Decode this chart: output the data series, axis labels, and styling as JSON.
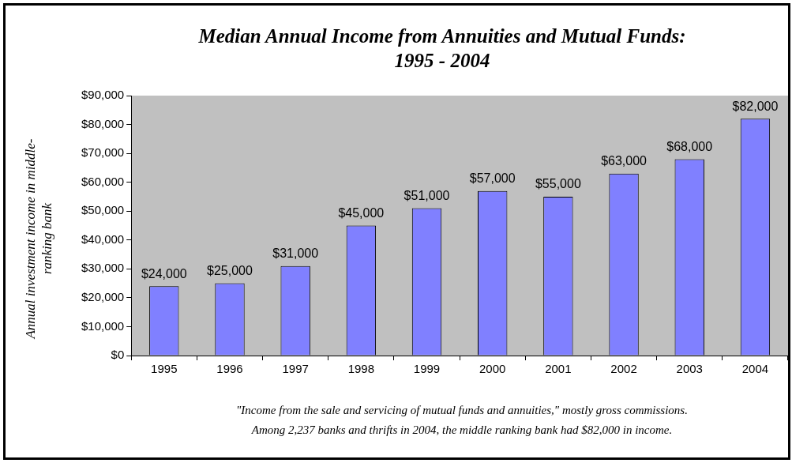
{
  "chart_data": {
    "type": "bar",
    "title": "Median Annual Income from Annuities and Mutual Funds: 1995 - 2004",
    "ylabel": "Annual investment income in middle-ranking bank",
    "categories": [
      "1995",
      "1996",
      "1997",
      "1998",
      "1999",
      "2000",
      "2001",
      "2002",
      "2003",
      "2004"
    ],
    "values": [
      24000,
      25000,
      31000,
      45000,
      51000,
      57000,
      55000,
      63000,
      68000,
      82000
    ],
    "color": "#8080ff",
    "value_labels": [
      "$24,000",
      "$25,000",
      "$31,000",
      "$45,000",
      "$51,000",
      "$57,000",
      "$55,000",
      "$63,000",
      "$68,000",
      "$82,000"
    ],
    "ylim": [
      0,
      90000
    ],
    "yticks": [
      {
        "value": 0,
        "label": "$0"
      },
      {
        "value": 10000,
        "label": "$10,000"
      },
      {
        "value": 20000,
        "label": "$20,000"
      },
      {
        "value": 30000,
        "label": "$30,000"
      },
      {
        "value": 40000,
        "label": "$40,000"
      },
      {
        "value": 50000,
        "label": "$50,000"
      },
      {
        "value": 60000,
        "label": "$60,000"
      },
      {
        "value": 70000,
        "label": "$70,000"
      },
      {
        "value": 80000,
        "label": "$80,000"
      },
      {
        "value": 90000,
        "label": "$90,000"
      }
    ],
    "grid": false,
    "annotations": [
      "\"Income from the sale and servicing of mutual funds and annuities,\" mostly gross commissions.",
      "Among 2,237 banks and thrifts in 2004, the middle ranking bank had $82,000 in income."
    ]
  }
}
